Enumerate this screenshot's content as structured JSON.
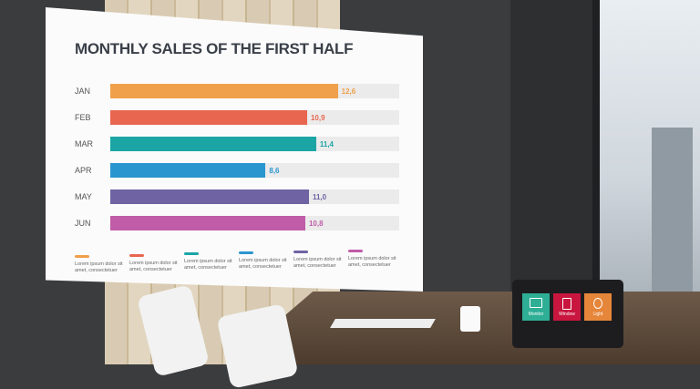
{
  "chart_data": {
    "type": "bar",
    "title": "MONTHLY SALES OF THE FIRST HALF",
    "categories": [
      "JAN",
      "FEB",
      "MAR",
      "APR",
      "MAY",
      "JUN"
    ],
    "values": [
      12.6,
      10.9,
      11.4,
      8.6,
      11.0,
      10.8
    ],
    "value_labels": [
      "12,6",
      "10,9",
      "11,4",
      "8,6",
      "11,0",
      "10,8"
    ],
    "colors": [
      "#f0a04a",
      "#e8664f",
      "#1ba5a5",
      "#2a96cf",
      "#6f63a3",
      "#c05ca8"
    ],
    "orientation": "horizontal",
    "legend": {
      "position": "bottom",
      "entries": [
        "Lorem ipsum dolor sit amet, consectetuer",
        "Lorem ipsum dolor sit amet, consectetuer",
        "Lorem ipsum dolor sit amet, consectetuer",
        "Lorem ipsum dolor sit amet, consectetuer",
        "Lorem ipsum dolor sit amet, consectetuer",
        "Lorem ipsum dolor sit amet, consectetuer"
      ]
    }
  },
  "tablet": {
    "buttons": [
      {
        "label": "Monitor",
        "icon": "monitor-icon",
        "color": "#2fae96"
      },
      {
        "label": "Window",
        "icon": "window-icon",
        "color": "#c8163f"
      },
      {
        "label": "Light",
        "icon": "lightbulb-icon",
        "color": "#e6863a"
      }
    ]
  }
}
